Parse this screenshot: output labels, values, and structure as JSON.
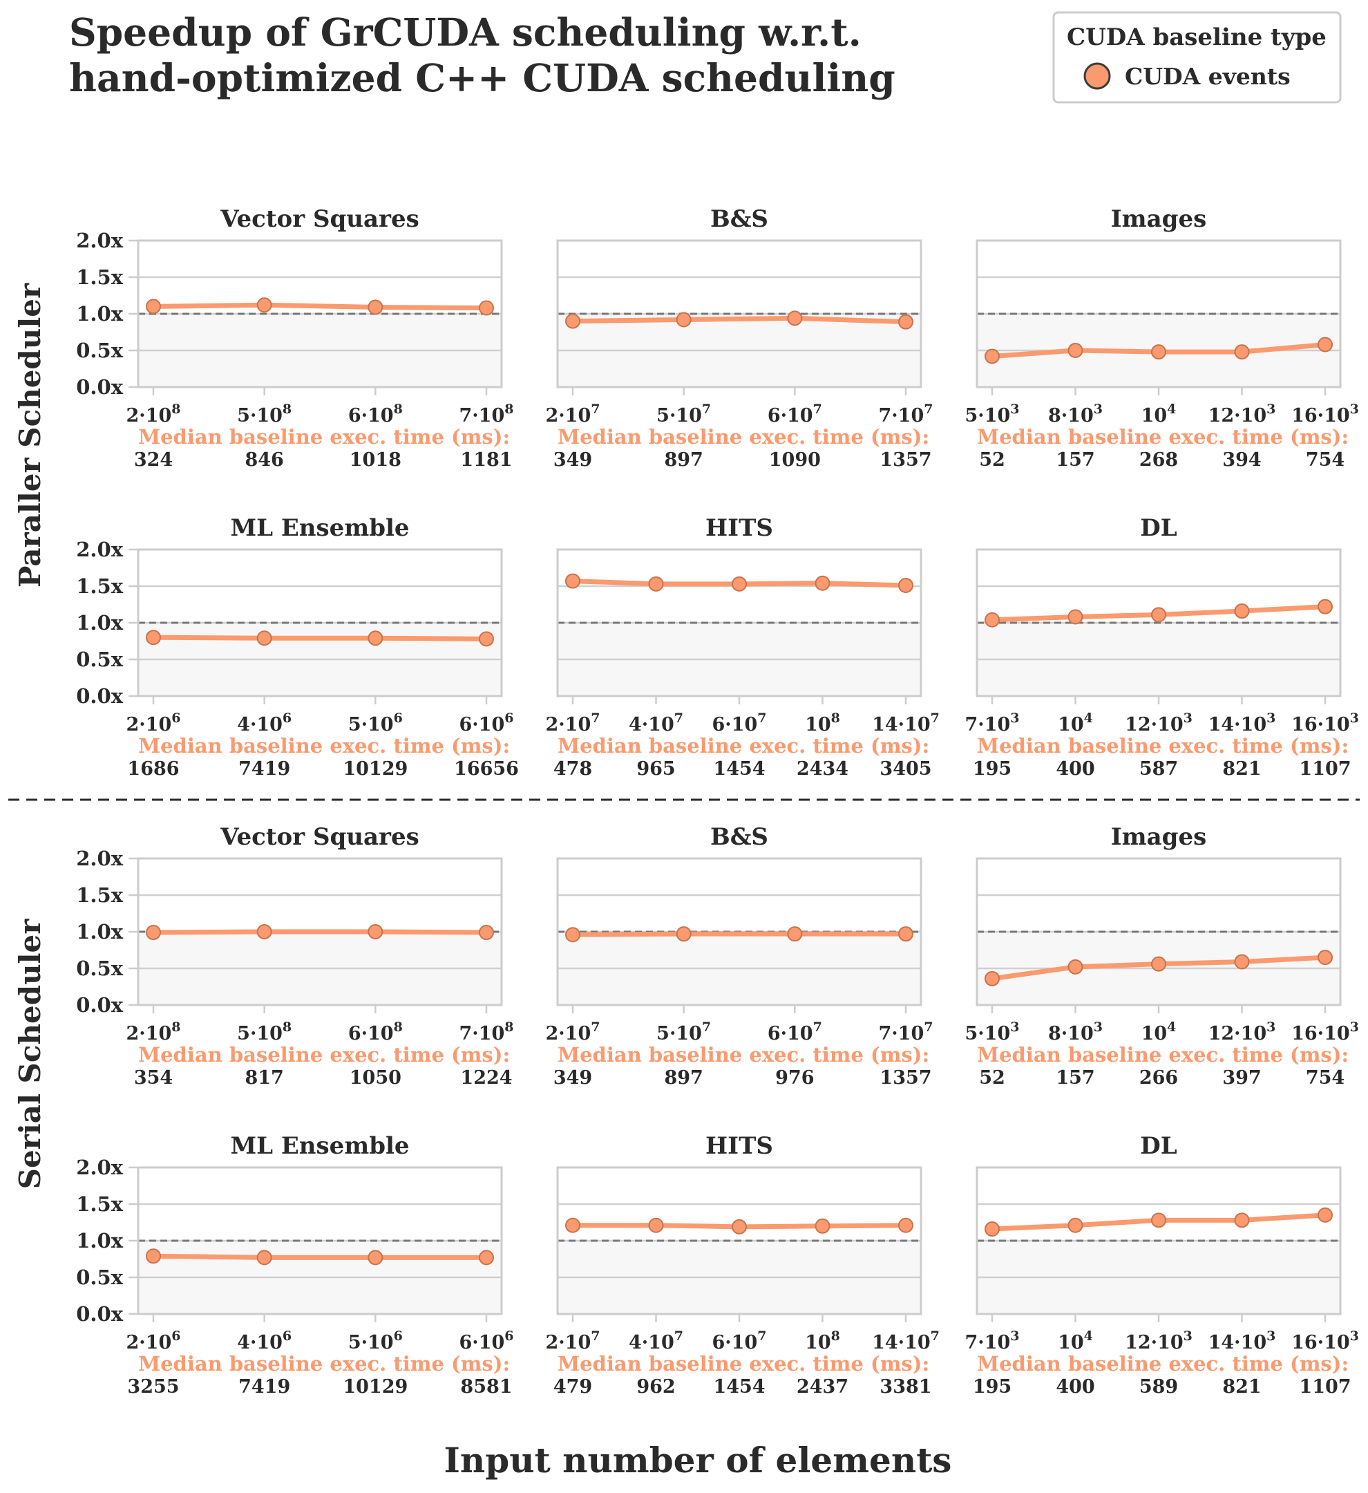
{
  "title_lines": [
    "Speedup of GrCUDA scheduling w.r.t.",
    "hand-optimized C++ CUDA scheduling"
  ],
  "legend": {
    "title": "CUDA baseline type",
    "entry": "CUDA events"
  },
  "row_labels": [
    "Paraller Scheduler",
    "Serial Scheduler"
  ],
  "xlabel": "Input number of elements",
  "baseline_label": "Median baseline exec. time (ms):",
  "colors": {
    "series": "#FA9A6E",
    "marker_edge": "#c7734c",
    "ref_line": "#777777",
    "shade": "#f7f7f7",
    "grid": "#d0d0d0",
    "text": "#2a2a2a",
    "dashed_separator": "#2a2a2a"
  },
  "chart_data": [
    {
      "type": "line",
      "group": "Paraller Scheduler",
      "title": "Vector Squares",
      "series_name": "CUDA events",
      "x": [
        [
          2,
          8,
          true
        ],
        [
          5,
          8,
          true
        ],
        [
          6,
          8,
          true
        ],
        [
          7,
          8,
          true
        ]
      ],
      "values": [
        1.1,
        1.12,
        1.09,
        1.08
      ],
      "baseline": [
        324,
        846,
        1018,
        1181
      ],
      "ylim": [
        0,
        2
      ],
      "yticks": [
        "0.0x",
        "0.5x",
        "1.0x",
        "1.5x",
        "2.0x"
      ]
    },
    {
      "type": "line",
      "group": "Paraller Scheduler",
      "title": "B&S",
      "series_name": "CUDA events",
      "x": [
        [
          2,
          7,
          true
        ],
        [
          5,
          7,
          true
        ],
        [
          6,
          7,
          true
        ],
        [
          7,
          7,
          true
        ]
      ],
      "values": [
        0.9,
        0.92,
        0.94,
        0.89
      ],
      "baseline": [
        349,
        897,
        1090,
        1357
      ],
      "ylim": [
        0,
        2
      ]
    },
    {
      "type": "line",
      "group": "Paraller Scheduler",
      "title": "Images",
      "series_name": "CUDA events",
      "x": [
        [
          5,
          3,
          true
        ],
        [
          8,
          3,
          true
        ],
        [
          null,
          4,
          false
        ],
        [
          12,
          3,
          true
        ],
        [
          16,
          3,
          true
        ]
      ],
      "values": [
        0.42,
        0.5,
        0.48,
        0.48,
        0.58
      ],
      "baseline": [
        52,
        157,
        268,
        394,
        754
      ],
      "ylim": [
        0,
        2
      ]
    },
    {
      "type": "line",
      "group": "Paraller Scheduler",
      "title": "ML Ensemble",
      "series_name": "CUDA events",
      "x": [
        [
          2,
          6,
          true
        ],
        [
          4,
          6,
          true
        ],
        [
          5,
          6,
          true
        ],
        [
          6,
          6,
          true
        ]
      ],
      "values": [
        0.8,
        0.79,
        0.79,
        0.78
      ],
      "baseline": [
        1686,
        7419,
        10129,
        16656
      ],
      "ylim": [
        0,
        2
      ],
      "yticks": [
        "0.0x",
        "0.5x",
        "1.0x",
        "1.5x",
        "2.0x"
      ]
    },
    {
      "type": "line",
      "group": "Paraller Scheduler",
      "title": "HITS",
      "series_name": "CUDA events",
      "x": [
        [
          2,
          7,
          true
        ],
        [
          4,
          7,
          true
        ],
        [
          6,
          7,
          true
        ],
        [
          null,
          8,
          false
        ],
        [
          14,
          7,
          true
        ]
      ],
      "values": [
        1.57,
        1.53,
        1.53,
        1.54,
        1.51
      ],
      "baseline": [
        478,
        965,
        1454,
        2434,
        3405
      ],
      "ylim": [
        0,
        2
      ]
    },
    {
      "type": "line",
      "group": "Paraller Scheduler",
      "title": "DL",
      "series_name": "CUDA events",
      "x": [
        [
          7,
          3,
          true
        ],
        [
          null,
          4,
          false
        ],
        [
          12,
          3,
          true
        ],
        [
          14,
          3,
          true
        ],
        [
          16,
          3,
          true
        ]
      ],
      "values": [
        1.04,
        1.08,
        1.11,
        1.16,
        1.22
      ],
      "baseline": [
        195,
        400,
        587,
        821,
        1107
      ],
      "ylim": [
        0,
        2
      ]
    },
    {
      "type": "line",
      "group": "Serial Scheduler",
      "title": "Vector Squares",
      "series_name": "CUDA events",
      "x": [
        [
          2,
          8,
          true
        ],
        [
          5,
          8,
          true
        ],
        [
          6,
          8,
          true
        ],
        [
          7,
          8,
          true
        ]
      ],
      "values": [
        0.99,
        1.0,
        1.0,
        0.99
      ],
      "baseline": [
        354,
        817,
        1050,
        1224
      ],
      "ylim": [
        0,
        2
      ],
      "yticks": [
        "0.0x",
        "0.5x",
        "1.0x",
        "1.5x",
        "2.0x"
      ]
    },
    {
      "type": "line",
      "group": "Serial Scheduler",
      "title": "B&S",
      "series_name": "CUDA events",
      "x": [
        [
          2,
          7,
          true
        ],
        [
          5,
          7,
          true
        ],
        [
          6,
          7,
          true
        ],
        [
          7,
          7,
          true
        ]
      ],
      "values": [
        0.96,
        0.97,
        0.97,
        0.97
      ],
      "baseline": [
        349,
        897,
        976,
        1357
      ],
      "ylim": [
        0,
        2
      ]
    },
    {
      "type": "line",
      "group": "Serial Scheduler",
      "title": "Images",
      "series_name": "CUDA events",
      "x": [
        [
          5,
          3,
          true
        ],
        [
          8,
          3,
          true
        ],
        [
          null,
          4,
          false
        ],
        [
          12,
          3,
          true
        ],
        [
          16,
          3,
          true
        ]
      ],
      "values": [
        0.36,
        0.52,
        0.56,
        0.59,
        0.65
      ],
      "baseline": [
        52,
        157,
        266,
        397,
        754
      ],
      "ylim": [
        0,
        2
      ]
    },
    {
      "type": "line",
      "group": "Serial Scheduler",
      "title": "ML Ensemble",
      "series_name": "CUDA events",
      "x": [
        [
          2,
          6,
          true
        ],
        [
          4,
          6,
          true
        ],
        [
          5,
          6,
          true
        ],
        [
          6,
          6,
          true
        ]
      ],
      "values": [
        0.79,
        0.77,
        0.77,
        0.77
      ],
      "baseline": [
        3255,
        7419,
        10129,
        8581
      ],
      "ylim": [
        0,
        2
      ],
      "yticks": [
        "0.0x",
        "0.5x",
        "1.0x",
        "1.5x",
        "2.0x"
      ]
    },
    {
      "type": "line",
      "group": "Serial Scheduler",
      "title": "HITS",
      "series_name": "CUDA events",
      "x": [
        [
          2,
          7,
          true
        ],
        [
          4,
          7,
          true
        ],
        [
          6,
          7,
          true
        ],
        [
          null,
          8,
          false
        ],
        [
          14,
          7,
          true
        ]
      ],
      "values": [
        1.21,
        1.21,
        1.19,
        1.2,
        1.21
      ],
      "baseline": [
        479,
        962,
        1454,
        2437,
        3381
      ],
      "ylim": [
        0,
        2
      ]
    },
    {
      "type": "line",
      "group": "Serial Scheduler",
      "title": "DL",
      "series_name": "CUDA events",
      "x": [
        [
          7,
          3,
          true
        ],
        [
          null,
          4,
          false
        ],
        [
          12,
          3,
          true
        ],
        [
          14,
          3,
          true
        ],
        [
          16,
          3,
          true
        ]
      ],
      "values": [
        1.16,
        1.21,
        1.28,
        1.28,
        1.35
      ],
      "baseline": [
        195,
        400,
        589,
        821,
        1107
      ],
      "ylim": [
        0,
        2
      ]
    }
  ]
}
